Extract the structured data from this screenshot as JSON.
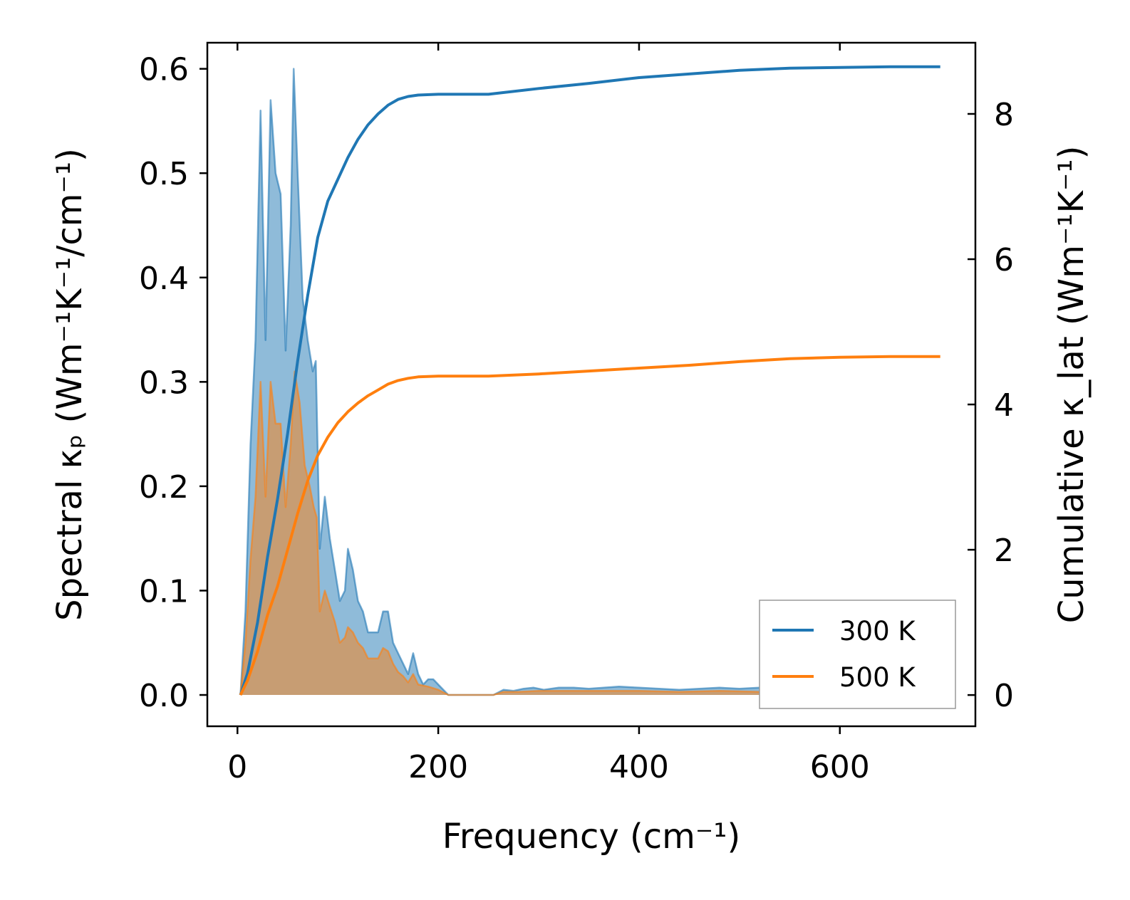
{
  "chart_data": {
    "type": "line",
    "xlabel": "Frequency (cm⁻¹)",
    "ylabel_left": "Spectral κₚ (Wm⁻¹K⁻¹/cm⁻¹)",
    "ylabel_right": "Cumulative κ_lat (Wm⁻¹K⁻¹)",
    "xlim": [
      -30,
      735
    ],
    "ylim_left": [
      -0.03,
      0.625
    ],
    "ylim_right": [
      -0.43,
      8.98
    ],
    "x_ticks": [
      0,
      200,
      400,
      600
    ],
    "x_tick_labels": [
      "0",
      "200",
      "400",
      "600"
    ],
    "y_left_ticks": [
      0.0,
      0.1,
      0.2,
      0.3,
      0.4,
      0.5,
      0.6
    ],
    "y_left_tick_labels": [
      "0.0",
      "0.1",
      "0.2",
      "0.3",
      "0.4",
      "0.5",
      "0.6"
    ],
    "y_right_ticks": [
      0,
      2,
      4,
      6,
      8
    ],
    "y_right_tick_labels": [
      "0",
      "2",
      "4",
      "6",
      "8"
    ],
    "legend_position": "lower-right",
    "series": [
      {
        "name": "300 K",
        "color": "#1f77b4",
        "spectral": [
          [
            3,
            0.0
          ],
          [
            8,
            0.08
          ],
          [
            13,
            0.24
          ],
          [
            18,
            0.34
          ],
          [
            23,
            0.56
          ],
          [
            28,
            0.34
          ],
          [
            33,
            0.57
          ],
          [
            38,
            0.5
          ],
          [
            43,
            0.48
          ],
          [
            48,
            0.33
          ],
          [
            53,
            0.45
          ],
          [
            56,
            0.6
          ],
          [
            60,
            0.5
          ],
          [
            65,
            0.38
          ],
          [
            70,
            0.34
          ],
          [
            75,
            0.31
          ],
          [
            78,
            0.32
          ],
          [
            82,
            0.14
          ],
          [
            87,
            0.19
          ],
          [
            92,
            0.15
          ],
          [
            97,
            0.12
          ],
          [
            102,
            0.09
          ],
          [
            107,
            0.1
          ],
          [
            110,
            0.14
          ],
          [
            115,
            0.12
          ],
          [
            120,
            0.09
          ],
          [
            125,
            0.08
          ],
          [
            130,
            0.06
          ],
          [
            135,
            0.06
          ],
          [
            140,
            0.06
          ],
          [
            145,
            0.08
          ],
          [
            150,
            0.08
          ],
          [
            155,
            0.05
          ],
          [
            160,
            0.04
          ],
          [
            165,
            0.03
          ],
          [
            170,
            0.02
          ],
          [
            175,
            0.04
          ],
          [
            180,
            0.02
          ],
          [
            185,
            0.01
          ],
          [
            190,
            0.015
          ],
          [
            195,
            0.015
          ],
          [
            200,
            0.01
          ],
          [
            210,
            0.0
          ],
          [
            240,
            0.0
          ],
          [
            255,
            0.0
          ],
          [
            265,
            0.005
          ],
          [
            275,
            0.004
          ],
          [
            285,
            0.006
          ],
          [
            295,
            0.007
          ],
          [
            305,
            0.005
          ],
          [
            320,
            0.007
          ],
          [
            335,
            0.007
          ],
          [
            350,
            0.006
          ],
          [
            365,
            0.007
          ],
          [
            380,
            0.008
          ],
          [
            400,
            0.007
          ],
          [
            420,
            0.006
          ],
          [
            440,
            0.005
          ],
          [
            460,
            0.006
          ],
          [
            480,
            0.007
          ],
          [
            500,
            0.006
          ],
          [
            520,
            0.007
          ],
          [
            540,
            0.005
          ],
          [
            560,
            0.004
          ],
          [
            580,
            0.003
          ],
          [
            600,
            0.003
          ],
          [
            620,
            0.002
          ],
          [
            650,
            0.002
          ],
          [
            680,
            0.001
          ],
          [
            700,
            0.001
          ]
        ],
        "cumulative": [
          [
            3,
            0.0
          ],
          [
            10,
            0.3
          ],
          [
            20,
            1.0
          ],
          [
            30,
            1.9
          ],
          [
            40,
            2.7
          ],
          [
            50,
            3.6
          ],
          [
            60,
            4.6
          ],
          [
            70,
            5.5
          ],
          [
            80,
            6.3
          ],
          [
            90,
            6.8
          ],
          [
            100,
            7.1
          ],
          [
            110,
            7.4
          ],
          [
            120,
            7.65
          ],
          [
            130,
            7.85
          ],
          [
            140,
            8.0
          ],
          [
            150,
            8.12
          ],
          [
            160,
            8.2
          ],
          [
            170,
            8.24
          ],
          [
            180,
            8.26
          ],
          [
            200,
            8.27
          ],
          [
            250,
            8.27
          ],
          [
            300,
            8.35
          ],
          [
            350,
            8.42
          ],
          [
            400,
            8.5
          ],
          [
            450,
            8.55
          ],
          [
            500,
            8.6
          ],
          [
            550,
            8.63
          ],
          [
            600,
            8.64
          ],
          [
            650,
            8.65
          ],
          [
            700,
            8.65
          ]
        ]
      },
      {
        "name": "500 K",
        "color": "#ff7f0e",
        "spectral": [
          [
            3,
            0.0
          ],
          [
            8,
            0.05
          ],
          [
            13,
            0.13
          ],
          [
            18,
            0.19
          ],
          [
            23,
            0.3
          ],
          [
            28,
            0.19
          ],
          [
            33,
            0.3
          ],
          [
            38,
            0.26
          ],
          [
            43,
            0.26
          ],
          [
            48,
            0.18
          ],
          [
            53,
            0.24
          ],
          [
            57,
            0.31
          ],
          [
            62,
            0.28
          ],
          [
            67,
            0.22
          ],
          [
            72,
            0.2
          ],
          [
            76,
            0.18
          ],
          [
            79,
            0.17
          ],
          [
            82,
            0.08
          ],
          [
            87,
            0.1
          ],
          [
            92,
            0.085
          ],
          [
            97,
            0.07
          ],
          [
            102,
            0.05
          ],
          [
            107,
            0.055
          ],
          [
            110,
            0.065
          ],
          [
            115,
            0.06
          ],
          [
            120,
            0.05
          ],
          [
            125,
            0.045
          ],
          [
            130,
            0.035
          ],
          [
            135,
            0.035
          ],
          [
            140,
            0.035
          ],
          [
            145,
            0.045
          ],
          [
            150,
            0.042
          ],
          [
            155,
            0.03
          ],
          [
            160,
            0.022
          ],
          [
            165,
            0.018
          ],
          [
            170,
            0.012
          ],
          [
            175,
            0.02
          ],
          [
            180,
            0.01
          ],
          [
            190,
            0.008
          ],
          [
            200,
            0.005
          ],
          [
            210,
            0.0
          ],
          [
            255,
            0.0
          ],
          [
            265,
            0.003
          ],
          [
            280,
            0.003
          ],
          [
            300,
            0.004
          ],
          [
            330,
            0.004
          ],
          [
            360,
            0.004
          ],
          [
            400,
            0.004
          ],
          [
            440,
            0.003
          ],
          [
            480,
            0.004
          ],
          [
            520,
            0.003
          ],
          [
            560,
            0.002
          ],
          [
            600,
            0.002
          ],
          [
            650,
            0.001
          ],
          [
            700,
            0.001
          ]
        ],
        "cumulative": [
          [
            3,
            0.0
          ],
          [
            10,
            0.2
          ],
          [
            20,
            0.6
          ],
          [
            30,
            1.1
          ],
          [
            40,
            1.5
          ],
          [
            50,
            2.0
          ],
          [
            60,
            2.5
          ],
          [
            70,
            2.95
          ],
          [
            80,
            3.3
          ],
          [
            90,
            3.55
          ],
          [
            100,
            3.75
          ],
          [
            110,
            3.9
          ],
          [
            120,
            4.02
          ],
          [
            130,
            4.12
          ],
          [
            140,
            4.2
          ],
          [
            150,
            4.28
          ],
          [
            160,
            4.33
          ],
          [
            170,
            4.36
          ],
          [
            180,
            4.38
          ],
          [
            200,
            4.39
          ],
          [
            250,
            4.39
          ],
          [
            300,
            4.42
          ],
          [
            350,
            4.46
          ],
          [
            400,
            4.5
          ],
          [
            450,
            4.54
          ],
          [
            500,
            4.59
          ],
          [
            550,
            4.63
          ],
          [
            600,
            4.65
          ],
          [
            650,
            4.66
          ],
          [
            700,
            4.66
          ]
        ]
      }
    ]
  }
}
